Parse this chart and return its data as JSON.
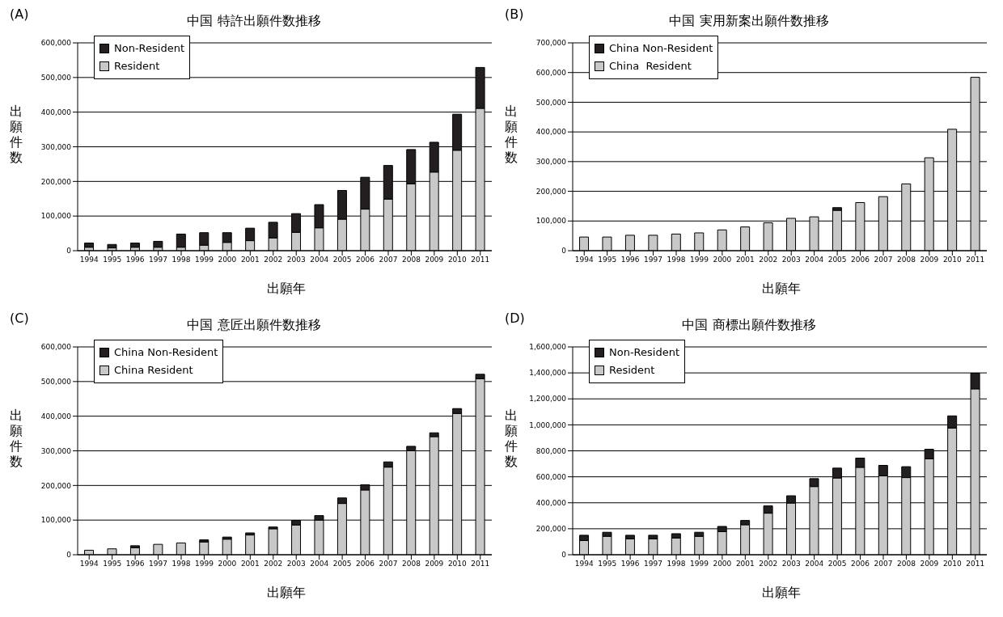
{
  "chart_data": [
    {
      "type": "bar",
      "title": "中国 特許出願件数推移",
      "annotations": [
        "(A)"
      ],
      "xlabel": "出願年",
      "ylabel": "出願件数",
      "categories": [
        "1994",
        "1995",
        "1996",
        "1997",
        "1998",
        "1999",
        "2000",
        "2001",
        "2002",
        "2003",
        "2004",
        "2005",
        "2006",
        "2007",
        "2008",
        "2009",
        "2010",
        "2011"
      ],
      "stacked": true,
      "ylim": [
        0,
        600000
      ],
      "yticks": [
        {
          "value": 0,
          "label": "0"
        },
        {
          "value": 100000,
          "label": "100,000"
        },
        {
          "value": 200000,
          "label": "200,000"
        },
        {
          "value": 300000,
          "label": "300,000"
        },
        {
          "value": 400000,
          "label": "400,000"
        },
        {
          "value": 500000,
          "label": "500,000"
        },
        {
          "value": 600000,
          "label": "600,000"
        }
      ],
      "grid": "y",
      "legend": "top left",
      "series": [
        {
          "name": "Resident",
          "color": "#c8c8c8",
          "values": [
            10000,
            8000,
            10000,
            10000,
            10000,
            16000,
            24000,
            29000,
            37000,
            53000,
            66000,
            91000,
            120000,
            149000,
            193000,
            227000,
            290000,
            411000
          ]
        },
        {
          "name": "Non-Resident",
          "color": "#231f20",
          "values": [
            12000,
            10000,
            12000,
            17000,
            38000,
            36000,
            28000,
            36000,
            45000,
            54000,
            67000,
            83000,
            92000,
            97000,
            99000,
            86000,
            104000,
            118000
          ]
        }
      ]
    },
    {
      "type": "bar",
      "title": "中国 実用新案出願件数推移",
      "annotations": [
        "(B)"
      ],
      "xlabel": "出願年",
      "ylabel": "出願件数",
      "categories": [
        "1994",
        "1995",
        "1996",
        "1997",
        "1998",
        "1999",
        "2000",
        "2001",
        "2002",
        "2003",
        "2004",
        "2005",
        "2006",
        "2007",
        "2008",
        "2009",
        "2010",
        "2011"
      ],
      "stacked": true,
      "ylim": [
        0,
        700000
      ],
      "yticks": [
        {
          "value": 0,
          "label": "0"
        },
        {
          "value": 100000,
          "label": "100,000"
        },
        {
          "value": 200000,
          "label": "200,000"
        },
        {
          "value": 300000,
          "label": "300,000"
        },
        {
          "value": 400000,
          "label": "400,000"
        },
        {
          "value": 500000,
          "label": "500,000"
        },
        {
          "value": 600000,
          "label": "600,000"
        },
        {
          "value": 700000,
          "label": "700,000"
        }
      ],
      "grid": "y",
      "legend": "top left",
      "series": [
        {
          "name": "China  Resident",
          "color": "#c8c8c8",
          "values": [
            46000,
            46000,
            52000,
            52000,
            56000,
            60000,
            70000,
            80000,
            94000,
            109000,
            114000,
            136000,
            162000,
            182000,
            225000,
            313000,
            409000,
            584000
          ]
        },
        {
          "name": "China Non-Resident",
          "color": "#231f20",
          "values": [
            0,
            0,
            0,
            0,
            0,
            0,
            0,
            0,
            0,
            0,
            0,
            9000,
            0,
            0,
            0,
            0,
            0,
            0
          ]
        }
      ]
    },
    {
      "type": "bar",
      "title": "中国 意匠出願件数推移",
      "annotations": [
        "(C)"
      ],
      "xlabel": "出願年",
      "ylabel": "出願件数",
      "categories": [
        "1994",
        "1995",
        "1996",
        "1997",
        "1998",
        "1999",
        "2000",
        "2001",
        "2002",
        "2003",
        "2004",
        "2005",
        "2006",
        "2007",
        "2008",
        "2009",
        "2010",
        "2011"
      ],
      "stacked": true,
      "ylim": [
        0,
        600000
      ],
      "yticks": [
        {
          "value": 0,
          "label": "0"
        },
        {
          "value": 100000,
          "label": "100,000"
        },
        {
          "value": 200000,
          "label": "200,000"
        },
        {
          "value": 300000,
          "label": "300,000"
        },
        {
          "value": 400000,
          "label": "400,000"
        },
        {
          "value": 500000,
          "label": "500,000"
        },
        {
          "value": 600000,
          "label": "600,000"
        }
      ],
      "grid": "y",
      "legend": "top left",
      "series": [
        {
          "name": "China Resident",
          "color": "#c8c8c8",
          "values": [
            13000,
            17000,
            20000,
            30000,
            34000,
            37000,
            45000,
            57000,
            75000,
            86000,
            100000,
            148000,
            187000,
            253000,
            300000,
            341000,
            408000,
            508000
          ]
        },
        {
          "name": "China Non-Resident",
          "color": "#231f20",
          "values": [
            0,
            0,
            6000,
            0,
            0,
            6000,
            6000,
            6000,
            5000,
            13000,
            13000,
            16000,
            15000,
            15000,
            13000,
            11000,
            14000,
            13000
          ]
        }
      ]
    },
    {
      "type": "bar",
      "title": "中国 商標出願件数推移",
      "annotations": [
        "(D)"
      ],
      "xlabel": "出願年",
      "ylabel": "出願件数",
      "categories": [
        "1994",
        "1995",
        "1996",
        "1997",
        "1998",
        "1999",
        "2000",
        "2001",
        "2002",
        "2003",
        "2004",
        "2005",
        "2006",
        "2007",
        "2008",
        "2009",
        "2010",
        "2011"
      ],
      "stacked": true,
      "ylim": [
        0,
        1600000
      ],
      "yticks": [
        {
          "value": 0,
          "label": "0"
        },
        {
          "value": 200000,
          "label": "200,000"
        },
        {
          "value": 400000,
          "label": "400,000"
        },
        {
          "value": 600000,
          "label": "600,000"
        },
        {
          "value": 800000,
          "label": "800,000"
        },
        {
          "value": 1000000,
          "label": "1,000,000"
        },
        {
          "value": 1200000,
          "label": "1,200,000"
        },
        {
          "value": 1400000,
          "label": "1,400,000"
        },
        {
          "value": 1600000,
          "label": "1,600,000"
        }
      ],
      "grid": "y",
      "legend": "top left",
      "series": [
        {
          "name": "Resident",
          "color": "#c8c8c8",
          "values": [
            109000,
            142000,
            122000,
            122000,
            129000,
            142000,
            178000,
            231000,
            320000,
            398000,
            525000,
            591000,
            673000,
            607000,
            594000,
            739000,
            975000,
            1277000
          ]
        },
        {
          "name": "Non-Resident",
          "color": "#231f20",
          "values": [
            41000,
            31000,
            28000,
            28000,
            33000,
            31000,
            40000,
            33000,
            56000,
            56000,
            61000,
            76000,
            71000,
            81000,
            84000,
            73000,
            94000,
            121000
          ]
        }
      ]
    }
  ]
}
